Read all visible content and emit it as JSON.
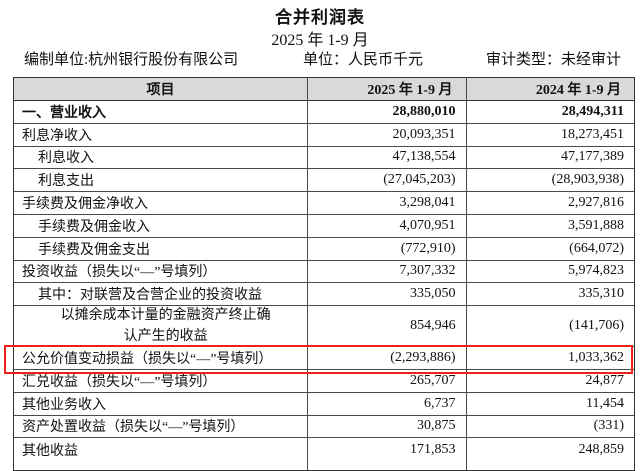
{
  "title": "合并利润表",
  "subtitle": "2025 年 1-9 月",
  "meta": {
    "prepared_by": "编制单位:杭州银行股份有限公司",
    "unit": "单位：人民币千元",
    "audit_type": "审计类型：未经审计"
  },
  "table": {
    "columns": [
      "项目",
      "2025 年 1-9 月",
      "2024 年 1-9 月"
    ],
    "highlight_color": "#ee2218",
    "rows": [
      {
        "label": "一、营业收入",
        "v2025": "28,880,010",
        "v2024": "28,494,311",
        "indent": 0,
        "bold": true
      },
      {
        "label": "利息净收入",
        "v2025": "20,093,351",
        "v2024": "18,273,451",
        "indent": 0
      },
      {
        "label": "利息收入",
        "v2025": "47,138,554",
        "v2024": "47,177,389",
        "indent": 1
      },
      {
        "label": "利息支出",
        "v2025": "(27,045,203)",
        "v2024": "(28,903,938)",
        "indent": 1
      },
      {
        "label": "手续费及佣金净收入",
        "v2025": "3,298,041",
        "v2024": "2,927,816",
        "indent": 0
      },
      {
        "label": "手续费及佣金收入",
        "v2025": "4,070,951",
        "v2024": "3,591,888",
        "indent": 1
      },
      {
        "label": "手续费及佣金支出",
        "v2025": "(772,910)",
        "v2024": "(664,072)",
        "indent": 1
      },
      {
        "label": "投资收益（损失以“—”号填列）",
        "v2025": "7,307,332",
        "v2024": "5,974,823",
        "indent": 0
      },
      {
        "label": "其中：对联营及合营企业的投资收益",
        "v2025": "335,050",
        "v2024": "335,310",
        "indent": 1
      },
      {
        "label": "以摊余成本计量的金融资产终止确认产生的收益",
        "v2025": "854,946",
        "v2024": "(141,706)",
        "indent": 2,
        "twoline": true
      },
      {
        "label": "公允价值变动损益（损失以“—”号填列）",
        "v2025": "(2,293,886)",
        "v2024": "1,033,362",
        "indent": 0,
        "highlighted": true
      },
      {
        "label": "汇兑收益（损失以“—”号填列）",
        "v2025": "265,707",
        "v2024": "24,877",
        "indent": 0
      },
      {
        "label": "其他业务收入",
        "v2025": "6,737",
        "v2024": "11,454",
        "indent": 0
      },
      {
        "label": "资产处置收益（损失以“—”号填列）",
        "v2025": "30,875",
        "v2024": "(331)",
        "indent": 0
      },
      {
        "label": "其他收益",
        "v2025": "171,853",
        "v2024": "248,859",
        "indent": 0
      }
    ]
  }
}
